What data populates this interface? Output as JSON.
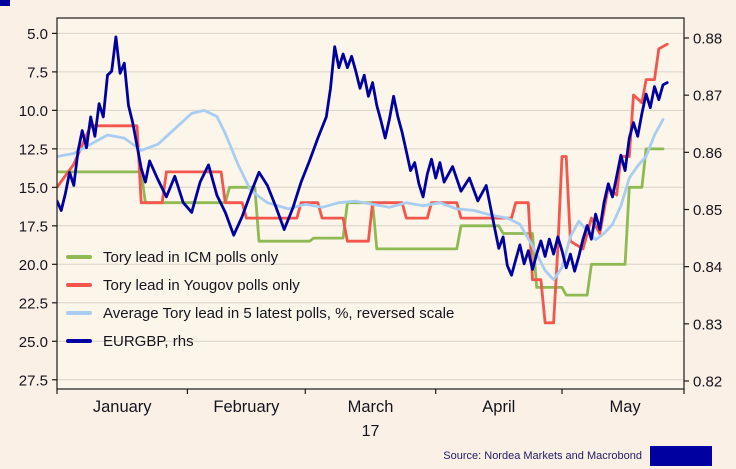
{
  "chart_data": {
    "type": "line",
    "title": "",
    "x_domain_days": [
      0,
      149
    ],
    "x_axis": {
      "month_labels": [
        "January",
        "February",
        "March",
        "April",
        "May"
      ],
      "month_label_days": [
        15.5,
        45,
        74.5,
        105,
        135
      ],
      "month_tick_days": [
        0,
        31,
        59,
        90,
        120,
        149
      ],
      "year_label": "17"
    },
    "left_axis": {
      "reversed": true,
      "ticks": [
        "5.0",
        "7.5",
        "10.0",
        "12.5",
        "15.0",
        "17.5",
        "20.0",
        "22.5",
        "25.0",
        "27.5"
      ],
      "tick_values": [
        5,
        7.5,
        10,
        12.5,
        15,
        17.5,
        20,
        22.5,
        25,
        27.5
      ],
      "top_value": 4.0,
      "bottom_value": 28.1
    },
    "right_axis": {
      "ticks": [
        "0.88",
        "0.87",
        "0.86",
        "0.85",
        "0.84",
        "0.83",
        "0.82"
      ],
      "tick_values": [
        0.88,
        0.87,
        0.86,
        0.85,
        0.84,
        0.83,
        0.82
      ],
      "top_value": 0.8835,
      "bottom_value": 0.8186
    },
    "series": [
      {
        "key": "icm",
        "name": "Tory lead in ICM polls only",
        "color": "#8fb953",
        "axis": "left",
        "width": 2.8,
        "points": [
          [
            0,
            14
          ],
          [
            20,
            14
          ],
          [
            21,
            16
          ],
          [
            40,
            16
          ],
          [
            41,
            15
          ],
          [
            47,
            15
          ],
          [
            48,
            18.5
          ],
          [
            60,
            18.5
          ],
          [
            61,
            18.3
          ],
          [
            68,
            18.3
          ],
          [
            69,
            16
          ],
          [
            75,
            16
          ],
          [
            76,
            19
          ],
          [
            95,
            19
          ],
          [
            96,
            17.5
          ],
          [
            105,
            17.5
          ],
          [
            106,
            18
          ],
          [
            113,
            18
          ],
          [
            114,
            21.5
          ],
          [
            120,
            21.5
          ],
          [
            121,
            22
          ],
          [
            126,
            22
          ],
          [
            127,
            20
          ],
          [
            135,
            20
          ],
          [
            136,
            15
          ],
          [
            139,
            15
          ],
          [
            140,
            12.5
          ],
          [
            144,
            12.5
          ]
        ]
      },
      {
        "key": "yougov",
        "name": "Tory lead in Yougov polls only",
        "color": "#f2564c",
        "axis": "left",
        "width": 2.8,
        "points": [
          [
            0,
            15
          ],
          [
            4,
            13.5
          ],
          [
            8,
            11
          ],
          [
            19,
            11
          ],
          [
            20,
            16
          ],
          [
            25,
            16
          ],
          [
            26,
            14
          ],
          [
            39,
            14
          ],
          [
            40,
            16
          ],
          [
            44,
            16
          ],
          [
            45,
            17
          ],
          [
            57,
            17
          ],
          [
            58,
            16
          ],
          [
            62,
            16
          ],
          [
            63,
            17
          ],
          [
            68,
            17
          ],
          [
            69,
            18.5
          ],
          [
            74,
            18.5
          ],
          [
            75,
            16
          ],
          [
            82,
            16
          ],
          [
            83,
            17
          ],
          [
            88,
            17
          ],
          [
            89,
            16
          ],
          [
            95,
            16
          ],
          [
            96,
            17
          ],
          [
            108,
            17
          ],
          [
            109,
            16
          ],
          [
            112,
            16
          ],
          [
            113,
            21
          ],
          [
            115,
            21
          ],
          [
            116,
            23.8
          ],
          [
            118,
            23.8
          ],
          [
            119,
            19
          ],
          [
            120,
            13
          ],
          [
            121,
            13
          ],
          [
            122,
            18.5
          ],
          [
            125,
            19
          ],
          [
            127,
            17
          ],
          [
            129,
            18
          ],
          [
            131,
            15
          ],
          [
            133,
            15.5
          ],
          [
            134,
            13
          ],
          [
            136,
            13
          ],
          [
            137,
            9
          ],
          [
            139,
            9.5
          ],
          [
            140,
            8
          ],
          [
            142,
            8
          ],
          [
            143,
            6
          ],
          [
            145,
            5.7
          ]
        ]
      },
      {
        "key": "average",
        "name": "Average Tory lead in 5 latest polls, %, reversed scale",
        "color": "#a9cdf0",
        "axis": "left",
        "width": 2.8,
        "points": [
          [
            0,
            13
          ],
          [
            4,
            12.8
          ],
          [
            8,
            12.2
          ],
          [
            12,
            11.6
          ],
          [
            16,
            11.8
          ],
          [
            20,
            12.6
          ],
          [
            24,
            12.2
          ],
          [
            28,
            11.2
          ],
          [
            32,
            10.2
          ],
          [
            35,
            10
          ],
          [
            38,
            10.4
          ],
          [
            40,
            11.5
          ],
          [
            43,
            13.5
          ],
          [
            46,
            15.2
          ],
          [
            50,
            16
          ],
          [
            55,
            16.4
          ],
          [
            59,
            16.1
          ],
          [
            63,
            16.3
          ],
          [
            67,
            16
          ],
          [
            71,
            15.9
          ],
          [
            75,
            16.1
          ],
          [
            79,
            16.3
          ],
          [
            83,
            16
          ],
          [
            87,
            16.2
          ],
          [
            91,
            16
          ],
          [
            95,
            16.4
          ],
          [
            99,
            16.5
          ],
          [
            103,
            16.8
          ],
          [
            107,
            17
          ],
          [
            110,
            17.4
          ],
          [
            113,
            18.8
          ],
          [
            116,
            20.4
          ],
          [
            118,
            21
          ],
          [
            120,
            20.2
          ],
          [
            122,
            18.2
          ],
          [
            124,
            17.2
          ],
          [
            126,
            17.8
          ],
          [
            128,
            18.4
          ],
          [
            130,
            18
          ],
          [
            132,
            17.4
          ],
          [
            134,
            16.2
          ],
          [
            136,
            14.4
          ],
          [
            138,
            13.6
          ],
          [
            140,
            13
          ],
          [
            142,
            11.6
          ],
          [
            144,
            10.6
          ]
        ]
      },
      {
        "key": "eurgbp",
        "name": "EURGBP, rhs",
        "color": "#0000a0",
        "axis": "right",
        "width": 2.8,
        "points": [
          [
            0,
            0.8515
          ],
          [
            1,
            0.8498
          ],
          [
            2,
            0.8528
          ],
          [
            3,
            0.8565
          ],
          [
            4,
            0.8542
          ],
          [
            5,
            0.8602
          ],
          [
            6,
            0.8638
          ],
          [
            7,
            0.8608
          ],
          [
            8,
            0.8662
          ],
          [
            9,
            0.8628
          ],
          [
            10,
            0.8685
          ],
          [
            11,
            0.8662
          ],
          [
            12,
            0.8735
          ],
          [
            13,
            0.8742
          ],
          [
            14,
            0.8802
          ],
          [
            15,
            0.8738
          ],
          [
            16,
            0.8756
          ],
          [
            17,
            0.8682
          ],
          [
            18,
            0.8652
          ],
          [
            19,
            0.8612
          ],
          [
            20,
            0.8572
          ],
          [
            21,
            0.8548
          ],
          [
            22,
            0.8585
          ],
          [
            24,
            0.8552
          ],
          [
            26,
            0.8522
          ],
          [
            28,
            0.8558
          ],
          [
            30,
            0.8512
          ],
          [
            32,
            0.8495
          ],
          [
            34,
            0.8548
          ],
          [
            36,
            0.8578
          ],
          [
            38,
            0.8525
          ],
          [
            40,
            0.8495
          ],
          [
            42,
            0.8455
          ],
          [
            44,
            0.8488
          ],
          [
            46,
            0.8528
          ],
          [
            48,
            0.8565
          ],
          [
            50,
            0.8542
          ],
          [
            52,
            0.8505
          ],
          [
            54,
            0.8465
          ],
          [
            56,
            0.8502
          ],
          [
            58,
            0.8548
          ],
          [
            60,
            0.8585
          ],
          [
            62,
            0.8625
          ],
          [
            64,
            0.8662
          ],
          [
            65,
            0.8712
          ],
          [
            66,
            0.8785
          ],
          [
            67,
            0.8748
          ],
          [
            68,
            0.8772
          ],
          [
            69,
            0.8748
          ],
          [
            70,
            0.8768
          ],
          [
            71,
            0.8742
          ],
          [
            72,
            0.8712
          ],
          [
            73,
            0.8735
          ],
          [
            74,
            0.8698
          ],
          [
            75,
            0.8722
          ],
          [
            76,
            0.8682
          ],
          [
            77,
            0.8655
          ],
          [
            78,
            0.8625
          ],
          [
            79,
            0.8658
          ],
          [
            80,
            0.8698
          ],
          [
            81,
            0.8662
          ],
          [
            82,
            0.8635
          ],
          [
            83,
            0.8602
          ],
          [
            84,
            0.8568
          ],
          [
            85,
            0.8582
          ],
          [
            86,
            0.8545
          ],
          [
            87,
            0.8522
          ],
          [
            88,
            0.8562
          ],
          [
            89,
            0.8588
          ],
          [
            90,
            0.8555
          ],
          [
            91,
            0.8582
          ],
          [
            92,
            0.8548
          ],
          [
            94,
            0.8575
          ],
          [
            96,
            0.8532
          ],
          [
            98,
            0.8555
          ],
          [
            100,
            0.8515
          ],
          [
            102,
            0.8542
          ],
          [
            103,
            0.8505
          ],
          [
            104,
            0.8468
          ],
          [
            105,
            0.8432
          ],
          [
            106,
            0.8452
          ],
          [
            107,
            0.8402
          ],
          [
            108,
            0.8385
          ],
          [
            109,
            0.8412
          ],
          [
            110,
            0.8438
          ],
          [
            111,
            0.8405
          ],
          [
            112,
            0.8428
          ],
          [
            113,
            0.8395
          ],
          [
            114,
            0.8422
          ],
          [
            115,
            0.8445
          ],
          [
            116,
            0.8418
          ],
          [
            117,
            0.8448
          ],
          [
            118,
            0.8422
          ],
          [
            119,
            0.8452
          ],
          [
            120,
            0.8428
          ],
          [
            121,
            0.8398
          ],
          [
            122,
            0.8422
          ],
          [
            123,
            0.8392
          ],
          [
            124,
            0.8418
          ],
          [
            125,
            0.8448
          ],
          [
            126,
            0.8472
          ],
          [
            127,
            0.8448
          ],
          [
            128,
            0.8492
          ],
          [
            129,
            0.8465
          ],
          [
            130,
            0.8512
          ],
          [
            131,
            0.8545
          ],
          [
            132,
            0.8522
          ],
          [
            133,
            0.8558
          ],
          [
            134,
            0.8595
          ],
          [
            135,
            0.8568
          ],
          [
            136,
            0.8625
          ],
          [
            137,
            0.8652
          ],
          [
            138,
            0.8628
          ],
          [
            139,
            0.8668
          ],
          [
            140,
            0.8702
          ],
          [
            141,
            0.8678
          ],
          [
            142,
            0.8715
          ],
          [
            143,
            0.8692
          ],
          [
            144,
            0.8718
          ],
          [
            145,
            0.8722
          ]
        ]
      }
    ],
    "legend_position": "inside-bottom-left",
    "grid": "horizontal"
  },
  "colors": {
    "background": "#faf0e6",
    "plot_background": "#fcf5ea",
    "gridline": "#d9d3c7",
    "frame": "#1a1a1a",
    "text": "#15151e",
    "nordea_navy": "#0000a0"
  },
  "footer": {
    "source_text": "Source: Nordea Markets and Macrobond"
  }
}
